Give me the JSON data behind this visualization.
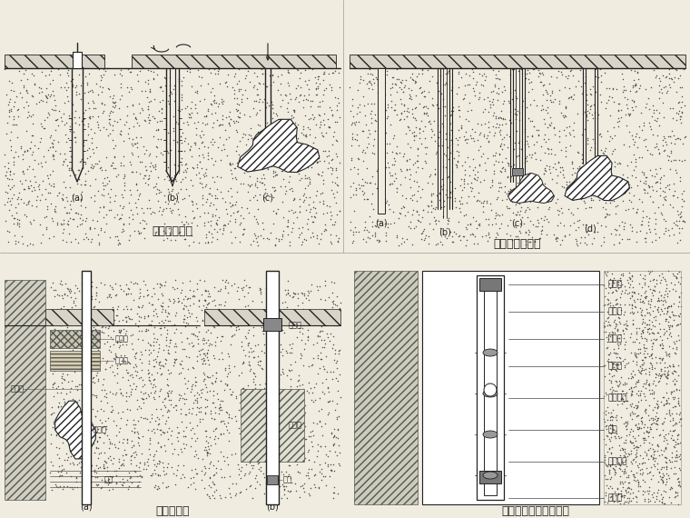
{
  "bg_color": "#f0ece0",
  "line_color": "#222222",
  "top_left_title": "打花管注浆法",
  "top_right_title": "套管护壁注浆法",
  "bottom_left_title": "边钻边灌法",
  "bottom_right_title": "袖阀管法的设备和构造",
  "top_left_labels": [
    "(a)",
    "(b)",
    "(c)"
  ],
  "top_right_labels": [
    "(a)",
    "(b)",
    "(c)",
    "(d)"
  ],
  "bottom_left_labels": [
    "(a)",
    "(b)"
  ],
  "annotations_right": [
    "止浆塞",
    "钻孔壁",
    "充填料",
    "出浆孔",
    "橡皮套阀",
    "钢管",
    "灌浆花管",
    "止浆塞"
  ],
  "annotations_bl_a": [
    "护壁管",
    "混凝土",
    "粘土层",
    "灌浆体",
    "灌浆"
  ],
  "annotations_bl_b": [
    "封孔塞",
    "灌浆体",
    "注塞"
  ]
}
